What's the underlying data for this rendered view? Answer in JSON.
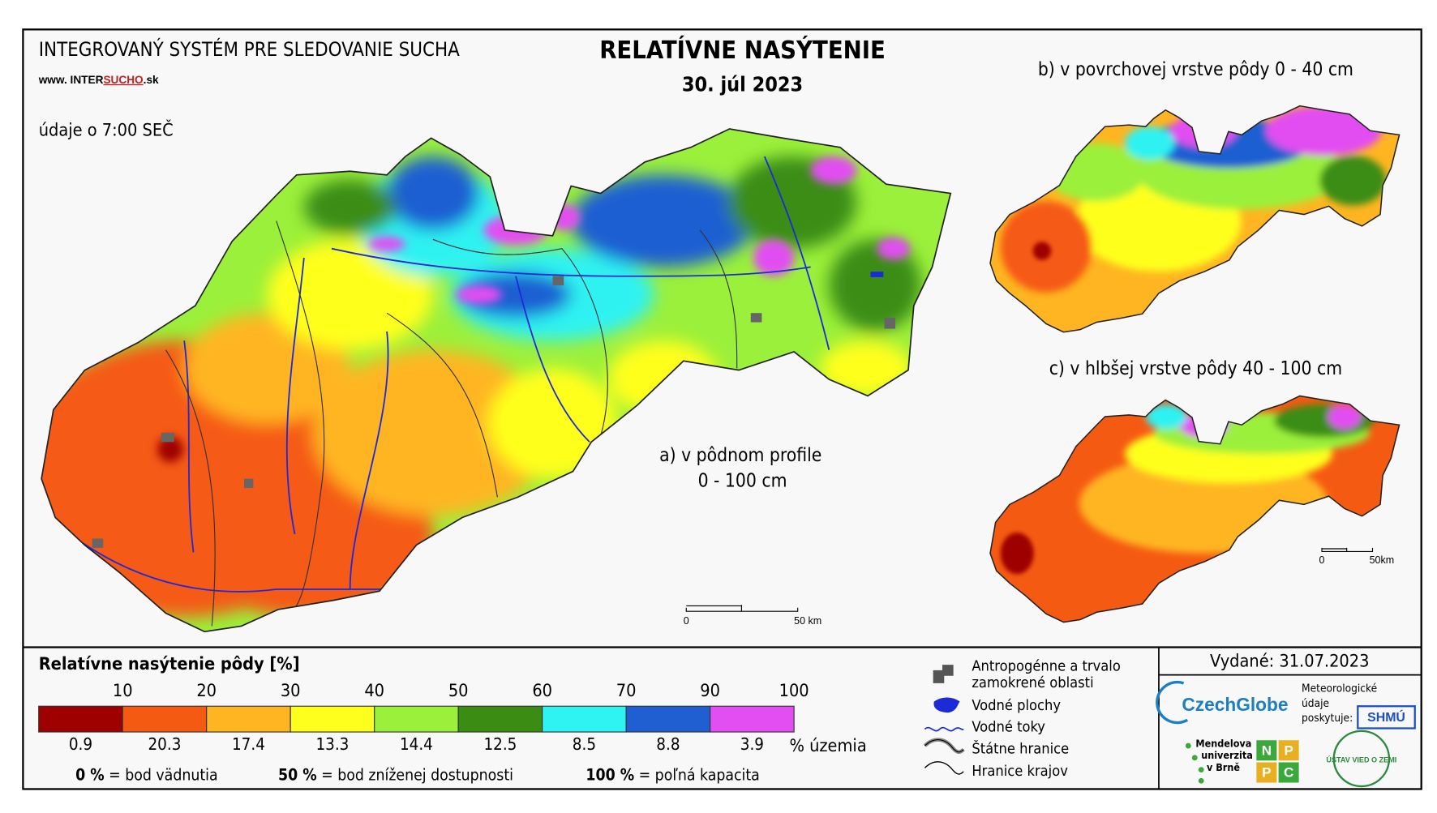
{
  "header": {
    "system": "INTEGROVANÝ SYSTÉM PRE SLEDOVANIE SUCHA",
    "web_prefix": "www. INTER",
    "web_highlight": "SUCHO",
    "web_suffix": ".sk",
    "time_note": "údaje o 7:00 SEČ",
    "title": "RELATÍVNE NASÝTENIE",
    "date": "30. júl 2023"
  },
  "maps": [
    {
      "label": "a) v pôdnom profile",
      "label_depth": "0 - 100 cm",
      "scale_start": "0",
      "scale_end": "50 km"
    },
    {
      "label": "b) v povrchovej vrstve pôdy 0 - 40 cm",
      "scale_start": "0",
      "scale_end": "50km"
    },
    {
      "label": "c) v hlbšej vrstve pôdy 40 - 100 cm"
    }
  ],
  "legend": {
    "title": "Relatívne nasýtenie pôdy [%]",
    "thresholds": [
      10,
      20,
      30,
      40,
      50,
      60,
      70,
      90,
      100
    ],
    "classes": [
      {
        "color": "#9e0000",
        "share": 0.9
      },
      {
        "color": "#f55a12",
        "share": 20.3
      },
      {
        "color": "#ffb521",
        "share": 17.4
      },
      {
        "color": "#ffff1e",
        "share": 13.3
      },
      {
        "color": "#9bf03b",
        "share": 14.4
      },
      {
        "color": "#3a8d12",
        "share": 12.5
      },
      {
        "color": "#2ff2f2",
        "share": 8.5
      },
      {
        "color": "#1f5fd2",
        "share": 8.8
      },
      {
        "color": "#e24ef2",
        "share": 3.9
      }
    ],
    "share_unit": "% územia",
    "notes": [
      {
        "value": "0 %",
        "text": "= bod vädnutia"
      },
      {
        "value": "50 %",
        "text": "= bod zníženej dostupnosti"
      },
      {
        "value": "100 %",
        "text": "= poľná kapacita"
      }
    ]
  },
  "symbols": {
    "wetland_1": "Antropogénne a trvalo",
    "wetland_2": "zamokrené oblasti",
    "water_bodies": "Vodné plochy",
    "rivers": "Vodné toky",
    "state_border": "Štátne hranice",
    "region_border": "Hranice krajov"
  },
  "issuer": {
    "issued": "Vydané: 31.07.2023",
    "czechglobe": "CzechGlobe",
    "met_1": "Meteorologické",
    "met_2": "údaje",
    "met_3": "poskytuje:",
    "shmu": "SHMÚ",
    "mendel_1": "Mendelova",
    "mendel_2": "univerzita",
    "mendel_3": "v Brně",
    "nppc": [
      "N",
      "P",
      "P",
      "C"
    ],
    "uvz": "ÚSTAV VIED O ZEMI"
  }
}
